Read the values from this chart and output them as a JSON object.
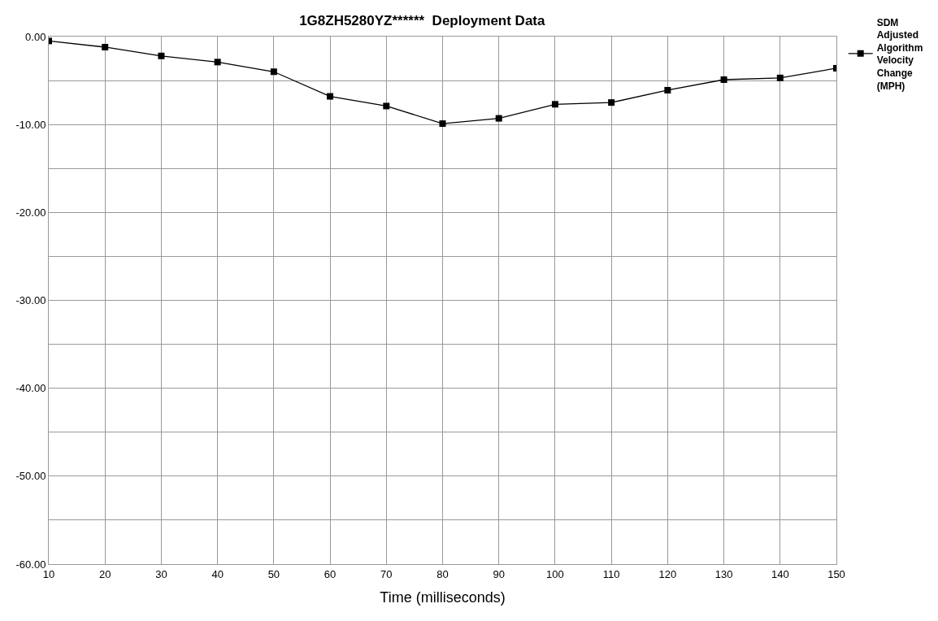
{
  "chart_data": {
    "type": "line",
    "title": "1G8ZH5280YZ******  Deployment Data",
    "xlabel": "Time (milliseconds)",
    "x": [
      10,
      20,
      30,
      40,
      50,
      60,
      70,
      80,
      90,
      100,
      110,
      120,
      130,
      140,
      150
    ],
    "series": [
      {
        "name": "SDM Adjusted Algorithm Velocity Change (MPH)",
        "color": "#000000",
        "values": [
          -0.5,
          -1.2,
          -2.2,
          -2.9,
          -4.0,
          -6.8,
          -7.9,
          -9.9,
          -9.3,
          -7.7,
          -7.5,
          -6.1,
          -4.9,
          -4.7,
          -3.6
        ]
      }
    ],
    "xlim": [
      10,
      150
    ],
    "xticks": [
      10,
      20,
      30,
      40,
      50,
      60,
      70,
      80,
      90,
      100,
      110,
      120,
      130,
      140,
      150
    ],
    "ylim": [
      -60,
      0
    ],
    "yticks": [
      {
        "value": 0,
        "label": "0.00"
      },
      {
        "value": -5,
        "label": null
      },
      {
        "value": -10,
        "label": "-10.00"
      },
      {
        "value": -15,
        "label": null
      },
      {
        "value": -20,
        "label": "-20.00"
      },
      {
        "value": -25,
        "label": null
      },
      {
        "value": -30,
        "label": "-30.00"
      },
      {
        "value": -35,
        "label": null
      },
      {
        "value": -40,
        "label": "-40.00"
      },
      {
        "value": -45,
        "label": null
      },
      {
        "value": -50,
        "label": "-50.00"
      },
      {
        "value": -55,
        "label": null
      },
      {
        "value": -60,
        "label": "-60.00"
      }
    ],
    "grid": true,
    "legend": "top right",
    "marker": "square",
    "line_style": "solid"
  }
}
